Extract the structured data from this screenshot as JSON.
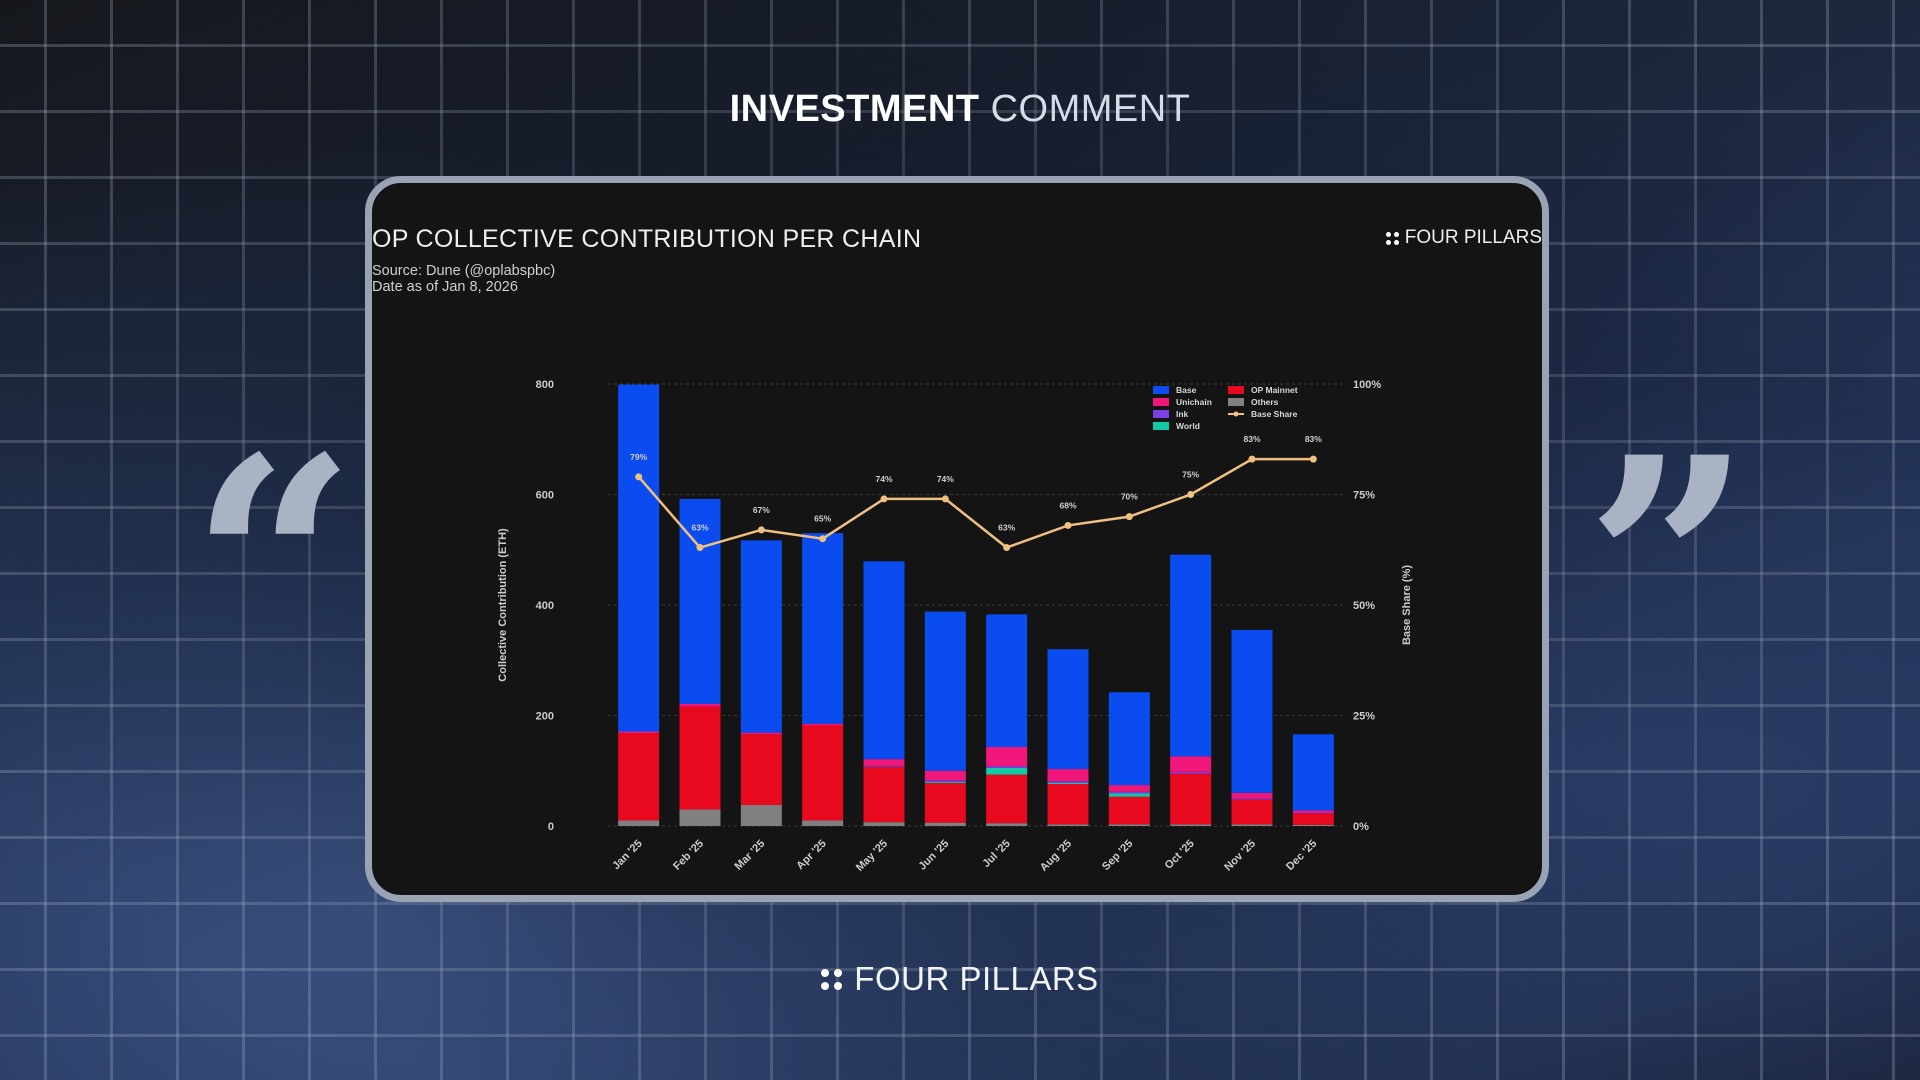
{
  "header": {
    "bold": "INVESTMENT",
    "light": "COMMENT"
  },
  "card": {
    "title": "OP COLLECTIVE CONTRIBUTION PER CHAIN",
    "source": "Source: Dune (@oplabspbc)",
    "date": "Date as of Jan 8, 2026",
    "brand": "FOUR PILLARS"
  },
  "footer": {
    "brand": "FOUR PILLARS"
  },
  "colors": {
    "Base": "#0a4cf0",
    "OP Mainnet": "#e8091f",
    "Unichain": "#f0167a",
    "Ink": "#7b3fe4",
    "World": "#11c9a5",
    "Others": "#808080",
    "Base Share": "#f0c080"
  },
  "chart_data": {
    "type": "bar",
    "stacked": true,
    "categories": [
      "Jan '25",
      "Feb '25",
      "Mar '25",
      "Apr '25",
      "May '25",
      "Jun '25",
      "Jul '25",
      "Aug '25",
      "Sep '25",
      "Oct '25",
      "Nov '25",
      "Dec '25"
    ],
    "ylabel": "Collective Contribution (ETH)",
    "ylabel_right": "Base Share (%)",
    "ylim": [
      0,
      800
    ],
    "yticks": [
      "0",
      "200",
      "400",
      "600",
      "800"
    ],
    "ylim_right": [
      0,
      100
    ],
    "yticks_right": [
      "0%",
      "25%",
      "50%",
      "75%",
      "100%"
    ],
    "legend_position": "top-right",
    "series": [
      {
        "name": "Others",
        "values": [
          10,
          30,
          38,
          10,
          7,
          6,
          5,
          3,
          3,
          3,
          3,
          2
        ]
      },
      {
        "name": "OP Mainnet",
        "values": [
          158,
          186,
          128,
          172,
          100,
          72,
          88,
          73,
          50,
          92,
          45,
          20
        ]
      },
      {
        "name": "World",
        "values": [
          0,
          0,
          0,
          0,
          0,
          2,
          12,
          2,
          6,
          0,
          0,
          0
        ]
      },
      {
        "name": "Ink",
        "values": [
          0,
          0,
          0,
          0,
          2,
          3,
          3,
          3,
          3,
          3,
          2,
          1
        ]
      },
      {
        "name": "Unichain",
        "values": [
          3,
          5,
          3,
          3,
          12,
          17,
          35,
          22,
          12,
          28,
          10,
          5
        ]
      },
      {
        "name": "Base",
        "values": [
          628,
          371,
          348,
          345,
          358,
          288,
          240,
          217,
          168,
          365,
          295,
          138
        ]
      }
    ],
    "line": {
      "name": "Base Share",
      "values": [
        79,
        63,
        67,
        65,
        74,
        74,
        63,
        68,
        70,
        75,
        83,
        83
      ],
      "labels": [
        "79%",
        "63%",
        "67%",
        "65%",
        "74%",
        "74%",
        "63%",
        "68%",
        "70%",
        "75%",
        "83%",
        "83%"
      ]
    }
  }
}
